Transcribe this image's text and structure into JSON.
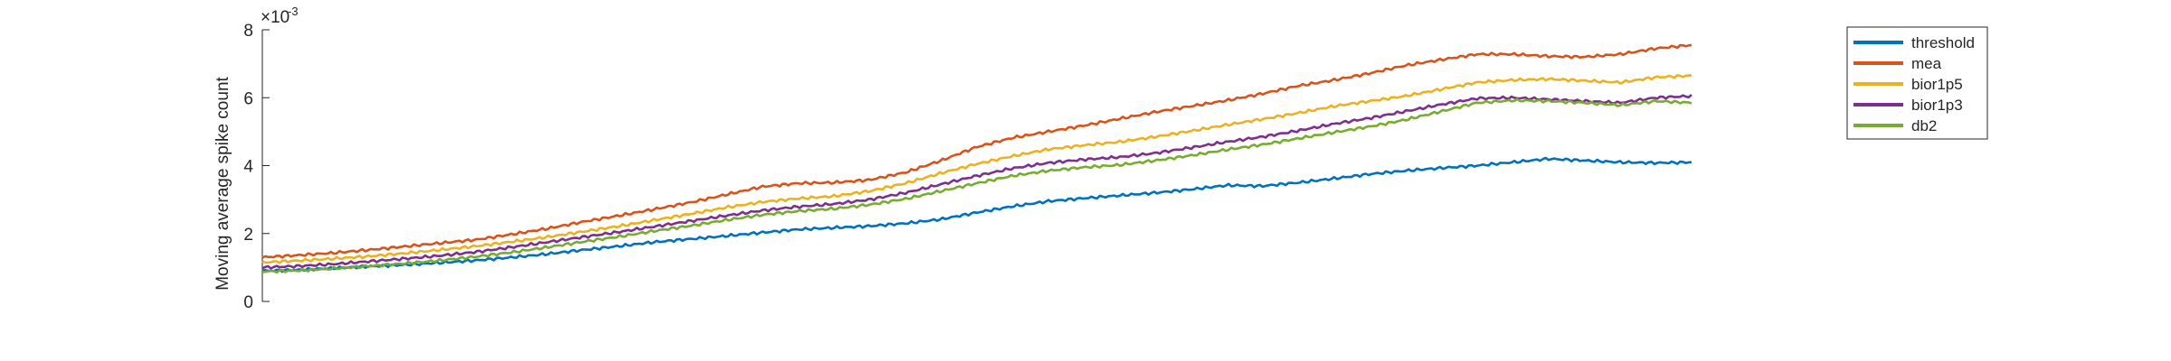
{
  "chart_data": {
    "type": "line",
    "title": "",
    "xlabel": "",
    "ylabel": "Moving average spike count",
    "ylim": [
      0,
      0.008
    ],
    "yticks": [
      0,
      0.002,
      0.004,
      0.006,
      0.008
    ],
    "ytick_labels": [
      "0",
      "2",
      "4",
      "6",
      "8"
    ],
    "y_exponent": {
      "base": "×10",
      "power": "-3"
    },
    "x_ticks_shown": false,
    "grid": false,
    "legend_position": "top-right",
    "x": [
      0,
      0.025,
      0.05,
      0.075,
      0.1,
      0.125,
      0.15,
      0.175,
      0.2,
      0.225,
      0.25,
      0.275,
      0.3,
      0.325,
      0.35,
      0.375,
      0.4,
      0.425,
      0.45,
      0.475,
      0.5,
      0.525,
      0.55,
      0.575,
      0.6,
      0.625,
      0.65,
      0.675,
      0.7,
      0.725,
      0.75,
      0.775,
      0.8,
      0.825,
      0.85,
      0.875,
      0.9,
      0.925,
      0.95,
      0.975,
      1
    ],
    "series": [
      {
        "name": "threshold",
        "color": "#0072BD",
        "values": [
          0.0009,
          0.00093,
          0.00098,
          0.00103,
          0.00108,
          0.00114,
          0.00121,
          0.0013,
          0.0014,
          0.00152,
          0.00163,
          0.00175,
          0.00184,
          0.00193,
          0.00203,
          0.00212,
          0.00217,
          0.00222,
          0.0023,
          0.00242,
          0.00262,
          0.0028,
          0.00295,
          0.00304,
          0.00312,
          0.0032,
          0.0033,
          0.00342,
          0.0034,
          0.0035,
          0.00362,
          0.00375,
          0.00385,
          0.00393,
          0.004,
          0.0041,
          0.0042,
          0.00415,
          0.0041,
          0.00408,
          0.0041
        ]
      },
      {
        "name": "mea",
        "color": "#D95319",
        "values": [
          0.0013,
          0.00136,
          0.00143,
          0.00152,
          0.00162,
          0.00172,
          0.00182,
          0.00198,
          0.00215,
          0.00235,
          0.00253,
          0.00272,
          0.00292,
          0.00315,
          0.00338,
          0.00348,
          0.0035,
          0.00358,
          0.0038,
          0.00415,
          0.00455,
          0.00482,
          0.005,
          0.00518,
          0.00538,
          0.00558,
          0.00575,
          0.00592,
          0.00612,
          0.00635,
          0.00652,
          0.00672,
          0.00695,
          0.00712,
          0.00728,
          0.00728,
          0.00722,
          0.0072,
          0.00728,
          0.00745,
          0.00755
        ]
      },
      {
        "name": "bior1p5",
        "color": "#EDB120",
        "values": [
          0.00115,
          0.0012,
          0.00126,
          0.00133,
          0.00142,
          0.00152,
          0.00163,
          0.00176,
          0.0019,
          0.00206,
          0.00222,
          0.0024,
          0.00258,
          0.00277,
          0.00293,
          0.00303,
          0.0031,
          0.00325,
          0.00348,
          0.00378,
          0.00405,
          0.00428,
          0.00448,
          0.0046,
          0.0047,
          0.00485,
          0.00502,
          0.0052,
          0.00537,
          0.00555,
          0.00575,
          0.0059,
          0.00605,
          0.00625,
          0.00645,
          0.00652,
          0.00655,
          0.0065,
          0.00645,
          0.0066,
          0.00665
        ]
      },
      {
        "name": "bior1p3",
        "color": "#7E2F8E",
        "values": [
          0.001,
          0.00104,
          0.0011,
          0.00118,
          0.00126,
          0.00135,
          0.00146,
          0.0016,
          0.00175,
          0.0019,
          0.00205,
          0.00221,
          0.00237,
          0.00253,
          0.00268,
          0.00279,
          0.00287,
          0.003,
          0.0032,
          0.00345,
          0.0037,
          0.00392,
          0.00408,
          0.00418,
          0.00425,
          0.00437,
          0.00453,
          0.0047,
          0.00485,
          0.00503,
          0.00523,
          0.0054,
          0.0056,
          0.0058,
          0.00598,
          0.006,
          0.00595,
          0.0059,
          0.00585,
          0.006,
          0.00605
        ]
      },
      {
        "name": "db2",
        "color": "#77AC30",
        "values": [
          0.00088,
          0.00091,
          0.00097,
          0.00104,
          0.00112,
          0.00121,
          0.00132,
          0.00145,
          0.0016,
          0.00176,
          0.00191,
          0.00208,
          0.00223,
          0.0024,
          0.00255,
          0.00266,
          0.00273,
          0.00285,
          0.00302,
          0.00325,
          0.00348,
          0.0037,
          0.00385,
          0.00395,
          0.00402,
          0.00415,
          0.0043,
          0.00447,
          0.00462,
          0.0048,
          0.00498,
          0.00515,
          0.00535,
          0.0056,
          0.00585,
          0.00592,
          0.0059,
          0.00585,
          0.00578,
          0.0059,
          0.00585
        ]
      }
    ]
  }
}
